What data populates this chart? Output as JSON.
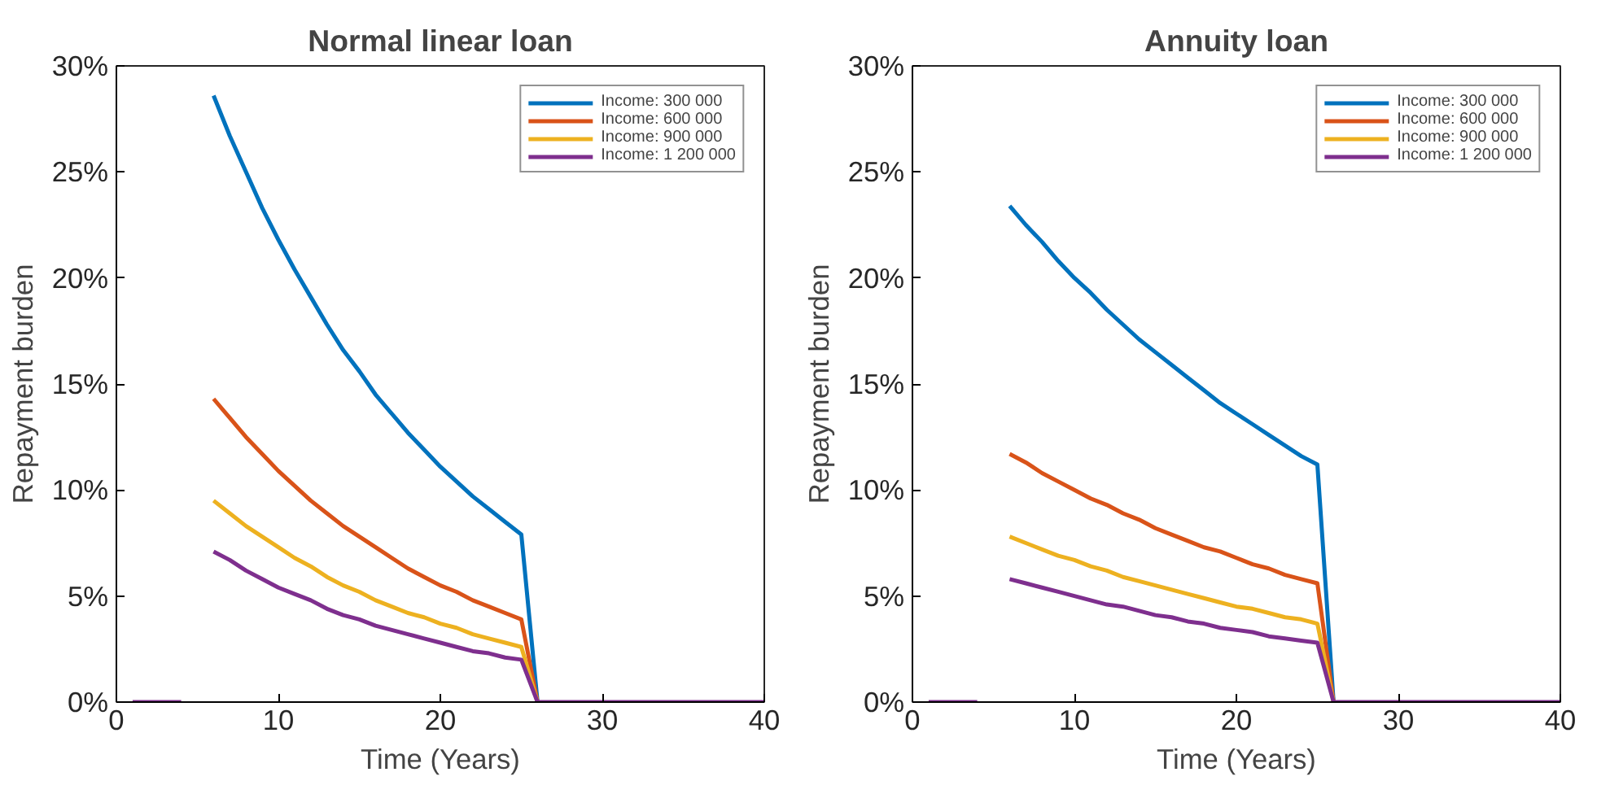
{
  "chart_data": [
    {
      "type": "line",
      "title": "Normal linear loan",
      "xlabel": "Time (Years)",
      "ylabel": "Repayment burden",
      "xlim": [
        0,
        40
      ],
      "xticks": [
        0,
        10,
        20,
        30,
        40
      ],
      "ylim": [
        0,
        30
      ],
      "yticks": [
        {
          "value": 0,
          "label": "0%"
        },
        {
          "value": 5,
          "label": "5%"
        },
        {
          "value": 10,
          "label": "10%"
        },
        {
          "value": 15,
          "label": "15%"
        },
        {
          "value": 20,
          "label": "20%"
        },
        {
          "value": 25,
          "label": "25%"
        },
        {
          "value": 30,
          "label": "30%"
        }
      ],
      "legend": "top right",
      "series": [
        {
          "name": "Income: 300 000",
          "color": "#0072bd",
          "x": [
            6,
            7,
            8,
            9,
            10,
            11,
            12,
            13,
            14,
            15,
            16,
            17,
            18,
            19,
            20,
            21,
            22,
            23,
            24,
            25,
            26
          ],
          "values": [
            28.6,
            26.7,
            25.0,
            23.3,
            21.8,
            20.4,
            19.1,
            17.8,
            16.6,
            15.6,
            14.5,
            13.6,
            12.7,
            11.9,
            11.1,
            10.4,
            9.7,
            9.1,
            8.5,
            7.9,
            0
          ]
        },
        {
          "name": "Income: 600 000",
          "color": "#d95319",
          "x": [
            6,
            7,
            8,
            9,
            10,
            11,
            12,
            13,
            14,
            15,
            16,
            17,
            18,
            19,
            20,
            21,
            22,
            23,
            24,
            25,
            26
          ],
          "values": [
            14.3,
            13.4,
            12.5,
            11.7,
            10.9,
            10.2,
            9.5,
            8.9,
            8.3,
            7.8,
            7.3,
            6.8,
            6.3,
            5.9,
            5.5,
            5.2,
            4.8,
            4.5,
            4.2,
            3.9,
            0
          ]
        },
        {
          "name": "Income: 900 000",
          "color": "#edb120",
          "x": [
            6,
            7,
            8,
            9,
            10,
            11,
            12,
            13,
            14,
            15,
            16,
            17,
            18,
            19,
            20,
            21,
            22,
            23,
            24,
            25,
            26
          ],
          "values": [
            9.5,
            8.9,
            8.3,
            7.8,
            7.3,
            6.8,
            6.4,
            5.9,
            5.5,
            5.2,
            4.8,
            4.5,
            4.2,
            4.0,
            3.7,
            3.5,
            3.2,
            3.0,
            2.8,
            2.6,
            0
          ]
        },
        {
          "name": "Income: 1 200 000",
          "color": "#7e2f8e",
          "x": [
            1,
            4,
            5,
            6,
            7,
            8,
            9,
            10,
            11,
            12,
            13,
            14,
            15,
            16,
            17,
            18,
            19,
            20,
            21,
            22,
            23,
            24,
            25,
            26,
            40
          ],
          "values": [
            0,
            0,
            null,
            7.1,
            6.7,
            6.2,
            5.8,
            5.4,
            5.1,
            4.8,
            4.4,
            4.1,
            3.9,
            3.6,
            3.4,
            3.2,
            3.0,
            2.8,
            2.6,
            2.4,
            2.3,
            2.1,
            2.0,
            0,
            0
          ]
        }
      ]
    },
    {
      "type": "line",
      "title": "Annuity loan",
      "xlabel": "Time (Years)",
      "ylabel": "Repayment burden",
      "xlim": [
        0,
        40
      ],
      "xticks": [
        0,
        10,
        20,
        30,
        40
      ],
      "ylim": [
        0,
        30
      ],
      "yticks": [
        {
          "value": 0,
          "label": "0%"
        },
        {
          "value": 5,
          "label": "5%"
        },
        {
          "value": 10,
          "label": "10%"
        },
        {
          "value": 15,
          "label": "15%"
        },
        {
          "value": 20,
          "label": "20%"
        },
        {
          "value": 25,
          "label": "25%"
        },
        {
          "value": 30,
          "label": "30%"
        }
      ],
      "legend": "top right",
      "series": [
        {
          "name": "Income: 300 000",
          "color": "#0072bd",
          "x": [
            6,
            7,
            8,
            9,
            10,
            11,
            12,
            13,
            14,
            15,
            16,
            17,
            18,
            19,
            20,
            21,
            22,
            23,
            24,
            25,
            26
          ],
          "values": [
            23.4,
            22.5,
            21.7,
            20.8,
            20.0,
            19.3,
            18.5,
            17.8,
            17.1,
            16.5,
            15.9,
            15.3,
            14.7,
            14.1,
            13.6,
            13.1,
            12.6,
            12.1,
            11.6,
            11.2,
            0
          ]
        },
        {
          "name": "Income: 600 000",
          "color": "#d95319",
          "x": [
            6,
            7,
            8,
            9,
            10,
            11,
            12,
            13,
            14,
            15,
            16,
            17,
            18,
            19,
            20,
            21,
            22,
            23,
            24,
            25,
            26
          ],
          "values": [
            11.7,
            11.3,
            10.8,
            10.4,
            10.0,
            9.6,
            9.3,
            8.9,
            8.6,
            8.2,
            7.9,
            7.6,
            7.3,
            7.1,
            6.8,
            6.5,
            6.3,
            6.0,
            5.8,
            5.6,
            0
          ]
        },
        {
          "name": "Income: 900 000",
          "color": "#edb120",
          "x": [
            6,
            7,
            8,
            9,
            10,
            11,
            12,
            13,
            14,
            15,
            16,
            17,
            18,
            19,
            20,
            21,
            22,
            23,
            24,
            25,
            26
          ],
          "values": [
            7.8,
            7.5,
            7.2,
            6.9,
            6.7,
            6.4,
            6.2,
            5.9,
            5.7,
            5.5,
            5.3,
            5.1,
            4.9,
            4.7,
            4.5,
            4.4,
            4.2,
            4.0,
            3.9,
            3.7,
            0
          ]
        },
        {
          "name": "Income: 1 200 000",
          "color": "#7e2f8e",
          "x": [
            1,
            4,
            5,
            6,
            7,
            8,
            9,
            10,
            11,
            12,
            13,
            14,
            15,
            16,
            17,
            18,
            19,
            20,
            21,
            22,
            23,
            24,
            25,
            26,
            40
          ],
          "values": [
            0,
            0,
            null,
            5.8,
            5.6,
            5.4,
            5.2,
            5.0,
            4.8,
            4.6,
            4.5,
            4.3,
            4.1,
            4.0,
            3.8,
            3.7,
            3.5,
            3.4,
            3.3,
            3.1,
            3.0,
            2.9,
            2.8,
            0,
            0
          ]
        }
      ]
    }
  ]
}
